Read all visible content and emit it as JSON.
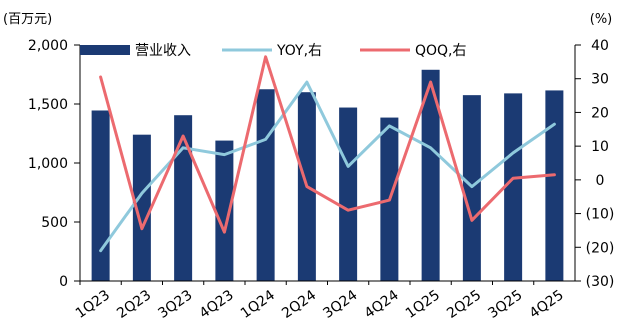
{
  "chart_data": {
    "type": "bar+line",
    "categories": [
      "1Q23",
      "2Q23",
      "3Q23",
      "4Q23",
      "1Q24",
      "2Q24",
      "3Q24",
      "4Q24",
      "1Q25",
      "2Q25",
      "3Q25",
      "4Q25"
    ],
    "left_unit": "(百万元)",
    "right_unit": "(%)",
    "left_axis": {
      "ylim": [
        0,
        2000
      ],
      "ticks": [
        "0",
        "500",
        "1,000",
        "1,500",
        "2,000"
      ]
    },
    "right_axis": {
      "ylim": [
        -30,
        40
      ],
      "ticks": [
        "(30)",
        "(20)",
        "(10)",
        "0",
        "10",
        "20",
        "30",
        "40"
      ]
    },
    "grid": false,
    "legend_position": "top",
    "series": [
      {
        "name": "营业收入",
        "type": "bar",
        "axis": "left",
        "color": "#1b3a73",
        "values": [
          1445,
          1240,
          1405,
          1190,
          1625,
          1600,
          1470,
          1385,
          1790,
          1575,
          1590,
          1615
        ]
      },
      {
        "name": "YOY,右",
        "type": "line",
        "axis": "right",
        "color": "#8fc9dc",
        "values": [
          -21,
          -4,
          9.5,
          7.5,
          12,
          29,
          4,
          16,
          9.5,
          -2,
          8,
          16.5
        ]
      },
      {
        "name": "QOQ,右",
        "type": "line",
        "axis": "right",
        "color": "#ec6a6f",
        "values": [
          30.5,
          -14.5,
          13,
          -15.5,
          36.5,
          -2,
          -9,
          -6,
          29,
          -12,
          0.5,
          1.5
        ]
      }
    ]
  }
}
